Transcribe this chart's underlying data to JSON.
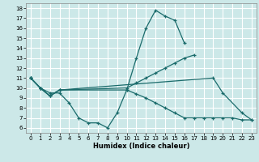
{
  "xlabel": "Humidex (Indice chaleur)",
  "background_color": "#cce8e8",
  "grid_color": "#ffffff",
  "line_color": "#1a6b6b",
  "xlim": [
    -0.5,
    23.5
  ],
  "ylim": [
    5.5,
    18.5
  ],
  "xticks": [
    0,
    1,
    2,
    3,
    4,
    5,
    6,
    7,
    8,
    9,
    10,
    11,
    12,
    13,
    14,
    15,
    16,
    17,
    18,
    19,
    20,
    21,
    22,
    23
  ],
  "yticks": [
    6,
    7,
    8,
    9,
    10,
    11,
    12,
    13,
    14,
    15,
    16,
    17,
    18
  ],
  "curves": [
    {
      "x": [
        0,
        1,
        2,
        3,
        4,
        5,
        6,
        7,
        8,
        9,
        10,
        11,
        12,
        13,
        14,
        15,
        16
      ],
      "y": [
        11,
        10,
        9.5,
        9.5,
        8.5,
        7.0,
        6.5,
        6.5,
        6.0,
        7.5,
        9.8,
        13.0,
        16.0,
        17.8,
        17.2,
        16.8,
        14.5
      ]
    },
    {
      "x": [
        0,
        1,
        2,
        3,
        10,
        11,
        12,
        13,
        14,
        15,
        16,
        17
      ],
      "y": [
        11,
        10,
        9.2,
        9.8,
        10.0,
        10.5,
        11.0,
        11.5,
        12.0,
        12.5,
        13.0,
        13.3
      ]
    },
    {
      "comment": "lower line: from (0,11) to (3,9.8) then (10,9.8) declining to (23,6.8)",
      "x": [
        0,
        1,
        2,
        3,
        10,
        11,
        12,
        13,
        14,
        15,
        16,
        17,
        18,
        19,
        20,
        21,
        22,
        23
      ],
      "y": [
        11,
        10,
        9.2,
        9.8,
        9.8,
        9.4,
        9.0,
        8.5,
        8.0,
        7.5,
        7.0,
        7.0,
        7.0,
        7.0,
        7.0,
        7.0,
        6.8,
        6.8
      ]
    },
    {
      "comment": "4th line: (0,11) to (3,9.8) jump to (19,11) then (20,9.5) (22,7.5) (23,6.8)",
      "x": [
        0,
        1,
        2,
        3,
        19,
        20,
        22,
        23
      ],
      "y": [
        11,
        10,
        9.2,
        9.8,
        11.0,
        9.5,
        7.5,
        6.8
      ]
    }
  ]
}
